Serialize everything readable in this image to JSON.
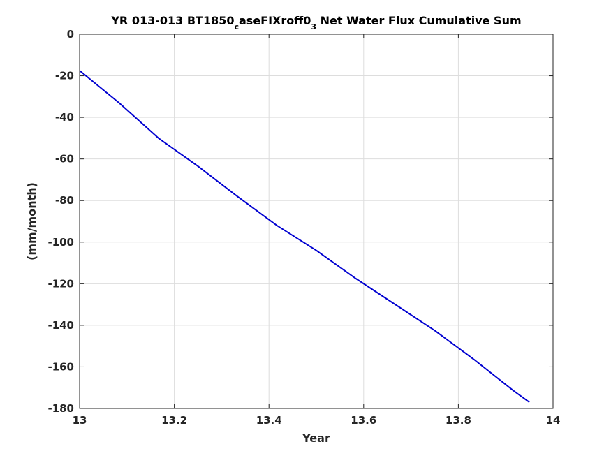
{
  "chart_data": {
    "type": "line",
    "title": {
      "parts": [
        {
          "text": "YR 013-013 BT1850",
          "sub": false
        },
        {
          "text": "c",
          "sub": true
        },
        {
          "text": "aseFIXroff0",
          "sub": false
        },
        {
          "text": "3",
          "sub": true
        },
        {
          "text": " Net Water Flux Cumulative Sum",
          "sub": false
        }
      ]
    },
    "xlabel": "Year",
    "ylabel": "(mm/month)",
    "xlim": [
      13,
      14
    ],
    "ylim": [
      -180,
      0
    ],
    "xticks": [
      13,
      13.2,
      13.4,
      13.6,
      13.8,
      14
    ],
    "xtick_labels": [
      "13",
      "13.2",
      "13.4",
      "13.6",
      "13.8",
      "14"
    ],
    "yticks": [
      0,
      -20,
      -40,
      -60,
      -80,
      -100,
      -120,
      -140,
      -160,
      -180
    ],
    "ytick_labels": [
      "0",
      "-20",
      "-40",
      "-60",
      "-80",
      "-100",
      "-120",
      "-140",
      "-160",
      "-180"
    ],
    "grid": true,
    "colors": {
      "line": "#0000d0",
      "grid": "#dddddd",
      "axis": "#262626"
    },
    "series": [
      {
        "x": [
          13.0,
          13.0833,
          13.1667,
          13.25,
          13.3333,
          13.4167,
          13.5,
          13.5833,
          13.6667,
          13.75,
          13.8333,
          13.9167,
          13.95
        ],
        "y": [
          -17.5,
          -33.0,
          -50.0,
          -63.5,
          -78.0,
          -92.0,
          -104.0,
          -117.5,
          -130.0,
          -142.5,
          -156.5,
          -171.5,
          -177.0
        ]
      }
    ]
  }
}
